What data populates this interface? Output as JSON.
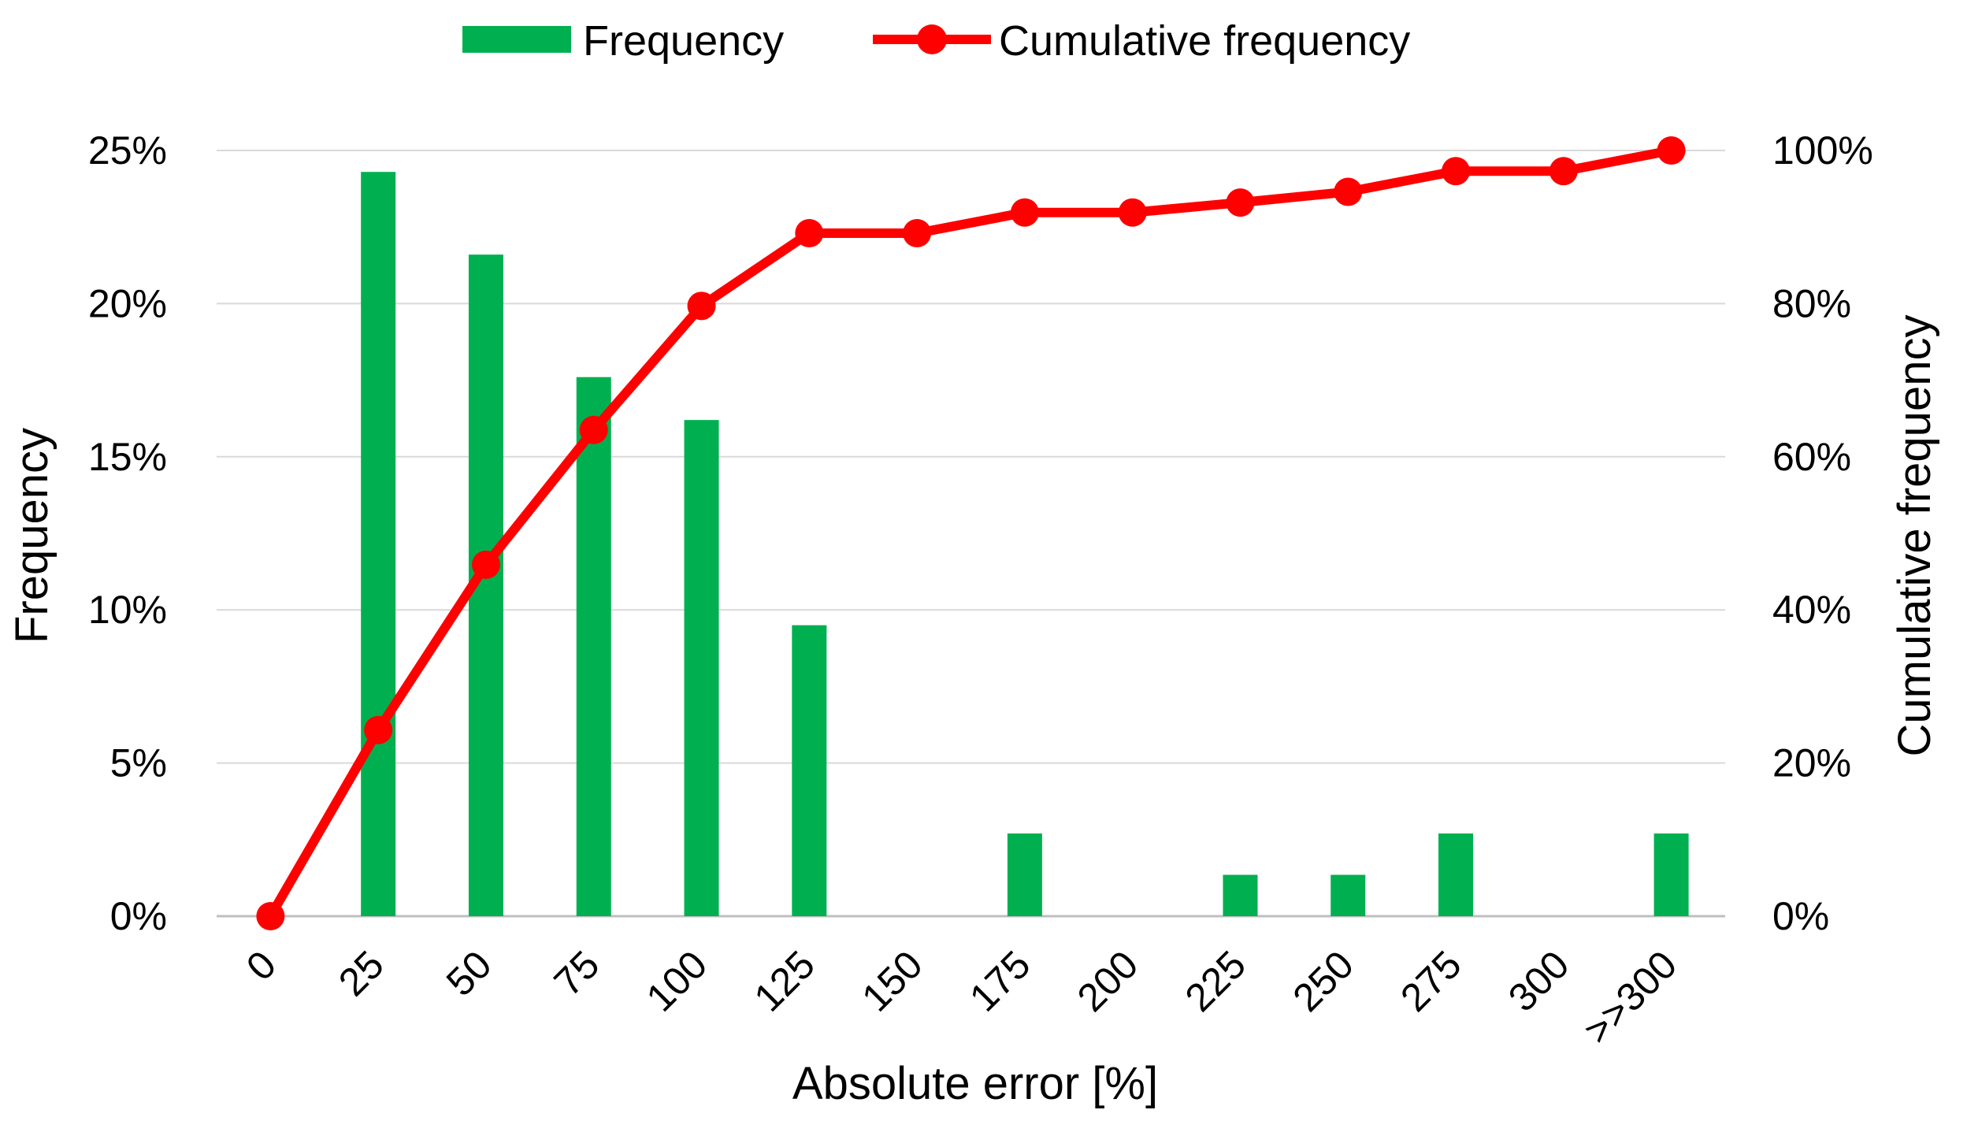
{
  "chart_data": {
    "type": "bar",
    "categories": [
      "0",
      "25",
      "50",
      "75",
      "100",
      "125",
      "150",
      "175",
      "200",
      "225",
      "250",
      "275",
      "300",
      ">>300"
    ],
    "series": [
      {
        "name": "Frequency",
        "kind": "bar",
        "axis": "left",
        "color": "#00b050",
        "values": [
          0,
          24.3,
          21.6,
          17.6,
          16.2,
          9.5,
          0,
          2.7,
          0,
          1.35,
          1.35,
          2.7,
          0,
          2.7
        ]
      },
      {
        "name": "Cumulative frequency",
        "kind": "line",
        "axis": "right",
        "color": "#ff0000",
        "marker": "circle",
        "values": [
          0,
          24.3,
          45.9,
          63.5,
          79.7,
          89.2,
          89.2,
          91.9,
          91.9,
          93.2,
          94.6,
          97.3,
          97.3,
          100
        ]
      }
    ],
    "xlabel": "Absolute error [%]",
    "ylabel": "Frequency",
    "y2label": "Cumulative frequency",
    "ylim": [
      0,
      25
    ],
    "y2lim": [
      0,
      100
    ],
    "yticks": [
      "0%",
      "5%",
      "10%",
      "15%",
      "20%",
      "25%"
    ],
    "y2ticks": [
      "0%",
      "20%",
      "40%",
      "60%",
      "80%",
      "100%"
    ],
    "grid": true,
    "legend": "top-center"
  }
}
